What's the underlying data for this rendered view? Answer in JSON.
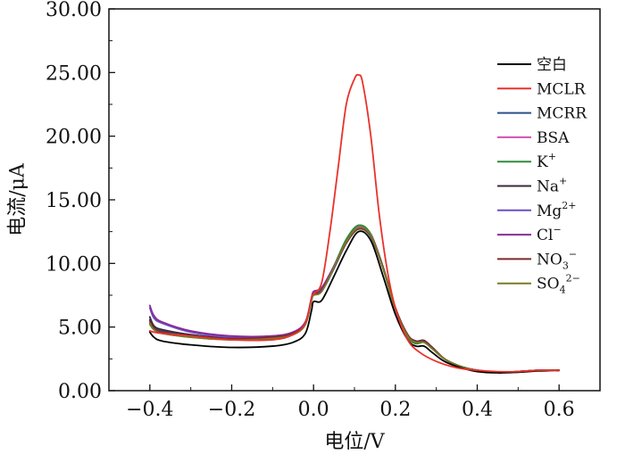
{
  "chart_data": {
    "type": "line",
    "title": "",
    "xlabel": "电位/V",
    "ylabel": "电流/μA",
    "xlim": [
      -0.5,
      0.7
    ],
    "ylim": [
      0,
      30
    ],
    "x_ticks": [
      -0.4,
      -0.2,
      0.0,
      0.2,
      0.4,
      0.6
    ],
    "x_tick_labels": [
      "−0.4",
      "−0.2",
      "0.0",
      "0.2",
      "0.4",
      "0.6"
    ],
    "y_ticks": [
      0,
      5,
      10,
      15,
      20,
      25,
      30
    ],
    "y_tick_labels": [
      "0.00",
      "5.00",
      "10.00",
      "15.00",
      "20.00",
      "25.00",
      "30.00"
    ],
    "legend_position": "right",
    "series": [
      {
        "name": "空白",
        "sub": "",
        "sup": "",
        "color": "#000000",
        "x": [
          -0.4,
          -0.39,
          -0.37,
          -0.3,
          -0.2,
          -0.1,
          -0.05,
          -0.02,
          -0.005,
          0.0,
          0.02,
          0.05,
          0.08,
          0.11,
          0.14,
          0.17,
          0.2,
          0.23,
          0.25,
          0.27,
          0.29,
          0.32,
          0.36,
          0.4,
          0.45,
          0.5,
          0.55,
          0.6
        ],
        "y": [
          4.6,
          4.2,
          3.9,
          3.6,
          3.4,
          3.5,
          3.8,
          4.5,
          6.3,
          7.0,
          7.1,
          9.0,
          11.0,
          12.5,
          11.8,
          9.0,
          6.0,
          4.0,
          3.5,
          3.5,
          3.0,
          2.3,
          1.8,
          1.5,
          1.4,
          1.45,
          1.55,
          1.6
        ]
      },
      {
        "name": "MCLR",
        "sub": "",
        "sup": "",
        "color": "#e8322b",
        "x": [
          -0.4,
          -0.39,
          -0.37,
          -0.3,
          -0.2,
          -0.1,
          -0.05,
          -0.02,
          -0.005,
          0.0,
          0.02,
          0.04,
          0.06,
          0.08,
          0.1,
          0.11,
          0.12,
          0.14,
          0.16,
          0.18,
          0.2,
          0.23,
          0.26,
          0.3,
          0.35,
          0.4,
          0.45,
          0.5,
          0.55,
          0.6
        ],
        "y": [
          4.7,
          4.6,
          4.5,
          4.3,
          4.0,
          4.0,
          4.4,
          5.3,
          7.3,
          7.6,
          8.5,
          12.5,
          17.5,
          22.5,
          24.5,
          24.8,
          24.2,
          20.0,
          14.0,
          9.5,
          6.5,
          4.0,
          3.0,
          2.3,
          1.8,
          1.6,
          1.5,
          1.5,
          1.6,
          1.6
        ]
      },
      {
        "name": "MCRR",
        "sub": "",
        "sup": "",
        "color": "#2b4f8a",
        "x": [
          -0.4,
          -0.39,
          -0.37,
          -0.3,
          -0.2,
          -0.1,
          -0.05,
          -0.02,
          -0.005,
          0.0,
          0.02,
          0.05,
          0.08,
          0.11,
          0.14,
          0.17,
          0.2,
          0.23,
          0.25,
          0.27,
          0.29,
          0.32,
          0.36,
          0.4,
          0.45,
          0.5,
          0.55,
          0.6
        ],
        "y": [
          5.6,
          5.0,
          4.7,
          4.4,
          4.1,
          4.2,
          4.5,
          5.3,
          7.1,
          7.5,
          7.8,
          9.6,
          11.6,
          12.8,
          12.2,
          9.6,
          6.4,
          4.3,
          3.8,
          3.8,
          3.3,
          2.5,
          1.9,
          1.6,
          1.45,
          1.5,
          1.6,
          1.6
        ]
      },
      {
        "name": "BSA",
        "sub": "",
        "sup": "",
        "color": "#d34fb0",
        "x": [
          -0.4,
          -0.39,
          -0.37,
          -0.3,
          -0.2,
          -0.1,
          -0.05,
          -0.02,
          -0.005,
          0.0,
          0.02,
          0.05,
          0.08,
          0.11,
          0.14,
          0.17,
          0.2,
          0.23,
          0.25,
          0.27,
          0.29,
          0.32,
          0.36,
          0.4,
          0.45,
          0.5,
          0.55,
          0.6
        ],
        "y": [
          5.4,
          4.9,
          4.6,
          4.3,
          4.1,
          4.2,
          4.5,
          5.3,
          7.2,
          7.6,
          7.9,
          9.7,
          11.7,
          12.9,
          12.3,
          9.7,
          6.5,
          4.3,
          3.8,
          3.9,
          3.4,
          2.5,
          1.9,
          1.6,
          1.45,
          1.5,
          1.6,
          1.6
        ]
      },
      {
        "name": "K",
        "sub": "",
        "sup": "+",
        "color": "#2e8b3a",
        "x": [
          -0.4,
          -0.39,
          -0.37,
          -0.3,
          -0.2,
          -0.1,
          -0.05,
          -0.02,
          -0.005,
          0.0,
          0.02,
          0.05,
          0.08,
          0.11,
          0.14,
          0.17,
          0.2,
          0.23,
          0.25,
          0.27,
          0.29,
          0.32,
          0.36,
          0.4,
          0.45,
          0.5,
          0.55,
          0.6
        ],
        "y": [
          5.2,
          4.8,
          4.5,
          4.2,
          4.0,
          4.1,
          4.4,
          5.2,
          7.1,
          7.5,
          7.9,
          9.8,
          11.9,
          13.0,
          12.3,
          9.6,
          6.4,
          4.2,
          3.7,
          3.8,
          3.3,
          2.5,
          1.9,
          1.6,
          1.45,
          1.5,
          1.6,
          1.6
        ]
      },
      {
        "name": "Na",
        "sub": "",
        "sup": "+",
        "color": "#3a2a3a",
        "x": [
          -0.4,
          -0.39,
          -0.37,
          -0.3,
          -0.2,
          -0.1,
          -0.05,
          -0.02,
          -0.005,
          0.0,
          0.02,
          0.05,
          0.08,
          0.11,
          0.14,
          0.17,
          0.2,
          0.23,
          0.25,
          0.27,
          0.29,
          0.32,
          0.36,
          0.4,
          0.45,
          0.5,
          0.55,
          0.6
        ],
        "y": [
          5.8,
          5.1,
          4.8,
          4.4,
          4.1,
          4.2,
          4.5,
          5.3,
          7.2,
          7.7,
          8.0,
          9.7,
          11.6,
          12.7,
          12.1,
          9.6,
          6.5,
          4.4,
          3.9,
          3.95,
          3.4,
          2.5,
          1.9,
          1.6,
          1.45,
          1.5,
          1.6,
          1.6
        ]
      },
      {
        "name": "Mg",
        "sub": "",
        "sup": "2+",
        "color": "#6a4fc4",
        "x": [
          -0.4,
          -0.39,
          -0.37,
          -0.3,
          -0.2,
          -0.1,
          -0.05,
          -0.02,
          -0.005,
          0.0,
          0.02,
          0.05,
          0.08,
          0.11,
          0.14,
          0.17,
          0.2,
          0.23,
          0.25,
          0.27,
          0.29,
          0.32,
          0.36,
          0.4,
          0.45,
          0.5,
          0.55,
          0.6
        ],
        "y": [
          6.5,
          5.7,
          5.3,
          4.6,
          4.2,
          4.3,
          4.6,
          5.4,
          7.3,
          7.7,
          8.0,
          9.7,
          11.7,
          12.8,
          12.2,
          9.7,
          6.5,
          4.4,
          3.9,
          3.9,
          3.4,
          2.5,
          1.9,
          1.6,
          1.45,
          1.5,
          1.6,
          1.6
        ]
      },
      {
        "name": "Cl",
        "sub": "",
        "sup": "−",
        "color": "#8a2a9a",
        "x": [
          -0.4,
          -0.39,
          -0.37,
          -0.3,
          -0.2,
          -0.1,
          -0.05,
          -0.02,
          -0.005,
          0.0,
          0.02,
          0.05,
          0.08,
          0.11,
          0.14,
          0.17,
          0.2,
          0.23,
          0.25,
          0.27,
          0.29,
          0.32,
          0.36,
          0.4,
          0.45,
          0.5,
          0.55,
          0.6
        ],
        "y": [
          6.7,
          5.9,
          5.4,
          4.7,
          4.3,
          4.3,
          4.6,
          5.4,
          7.3,
          7.8,
          8.1,
          9.8,
          11.7,
          12.8,
          12.2,
          9.7,
          6.5,
          4.4,
          3.9,
          3.9,
          3.4,
          2.5,
          1.9,
          1.6,
          1.45,
          1.5,
          1.6,
          1.6
        ]
      },
      {
        "name": "NO",
        "sub": "3",
        "sup": "−",
        "color": "#7a2a2a",
        "x": [
          -0.4,
          -0.39,
          -0.37,
          -0.3,
          -0.2,
          -0.1,
          -0.05,
          -0.02,
          -0.005,
          0.0,
          0.02,
          0.05,
          0.08,
          0.11,
          0.14,
          0.17,
          0.2,
          0.23,
          0.25,
          0.27,
          0.29,
          0.32,
          0.36,
          0.4,
          0.45,
          0.5,
          0.55,
          0.6
        ],
        "y": [
          5.5,
          4.9,
          4.6,
          4.3,
          4.1,
          4.2,
          4.5,
          5.3,
          7.2,
          7.6,
          7.9,
          9.7,
          11.6,
          12.7,
          12.2,
          9.7,
          6.5,
          4.4,
          3.9,
          3.9,
          3.4,
          2.5,
          1.9,
          1.6,
          1.45,
          1.5,
          1.6,
          1.6
        ]
      },
      {
        "name": "SO",
        "sub": "4",
        "sup": "2−",
        "color": "#7a7a28",
        "x": [
          -0.4,
          -0.39,
          -0.37,
          -0.3,
          -0.2,
          -0.1,
          -0.05,
          -0.02,
          -0.005,
          0.0,
          0.02,
          0.05,
          0.08,
          0.11,
          0.14,
          0.17,
          0.2,
          0.23,
          0.25,
          0.27,
          0.29,
          0.32,
          0.36,
          0.4,
          0.45,
          0.5,
          0.55,
          0.6
        ],
        "y": [
          5.3,
          4.8,
          4.5,
          4.2,
          4.0,
          4.1,
          4.4,
          5.2,
          7.1,
          7.5,
          7.8,
          9.7,
          11.7,
          12.8,
          12.2,
          9.6,
          6.4,
          4.3,
          3.8,
          3.8,
          3.3,
          2.5,
          1.9,
          1.6,
          1.45,
          1.5,
          1.6,
          1.6
        ]
      }
    ]
  }
}
